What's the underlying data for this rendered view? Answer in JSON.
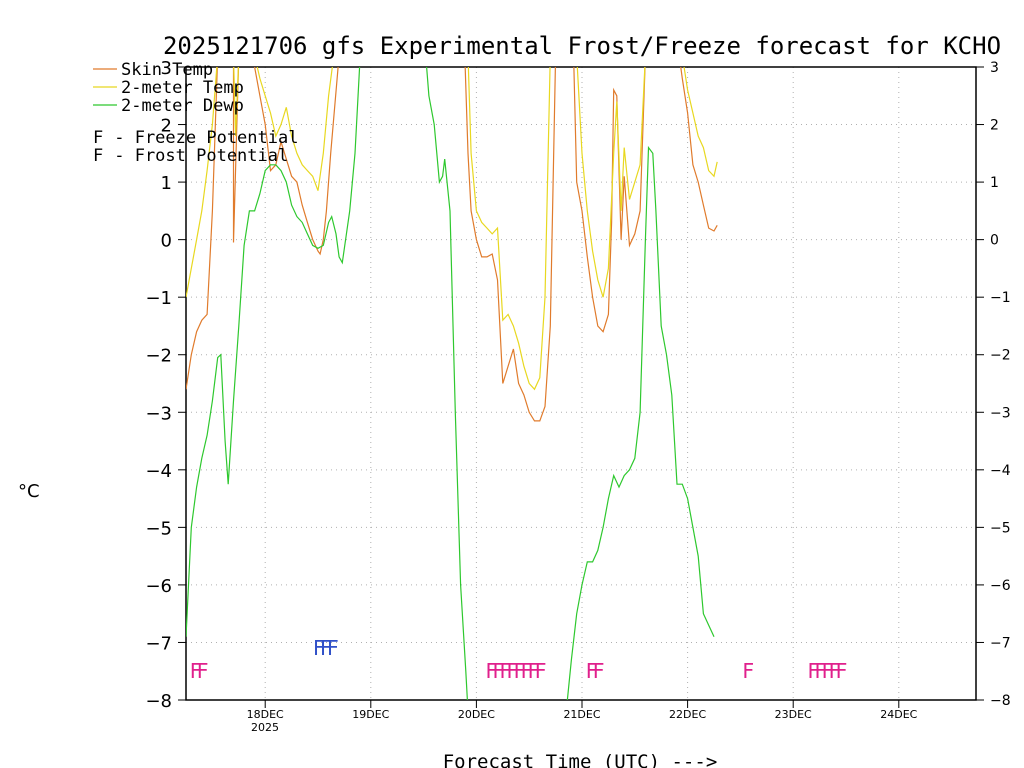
{
  "chart_data": {
    "type": "line",
    "title": "2025121706 gfs Experimental Frost/Freeze forecast for KCHO",
    "ylabel": "°C",
    "xlabel": "Forecast Time (UTC) --->",
    "ylim": [
      -8,
      3
    ],
    "xlim": [
      17.25,
      24.75
    ],
    "y_ticks": [
      -8,
      -7,
      -6,
      -5,
      -4,
      -3,
      -2,
      -1,
      0,
      1,
      2,
      3
    ],
    "y_tick_labels": [
      "−8",
      "−7",
      "−6",
      "−5",
      "−4",
      "−3",
      "−2",
      "−1",
      "0",
      "1",
      "2",
      "3"
    ],
    "x_ticks": [
      18,
      19,
      20,
      21,
      22,
      23,
      24
    ],
    "x_tick_labels": [
      "18DEC",
      "19DEC",
      "20DEC",
      "21DEC",
      "22DEC",
      "23DEC",
      "24DEC"
    ],
    "x_sublabel": "2025",
    "x_units": "day of December 2025 (UTC)",
    "grid": true,
    "colors": {
      "skin": "#e07b2c",
      "temp": "#e8d820",
      "dewp": "#2ec82e",
      "freeze": "#e0208c",
      "frost": "#3050c8"
    },
    "legend": {
      "placement": "top-left",
      "entries": [
        {
          "label": "Skin Temp",
          "color": "#e07b2c"
        },
        {
          "label": "2-meter Temp",
          "color": "#e8d820"
        },
        {
          "label": "2-meter Dewp",
          "color": "#2ec82e"
        }
      ],
      "notes": [
        {
          "symbol": "F",
          "label": " - Freeze Potential",
          "color": "#e0208c"
        },
        {
          "symbol": "F",
          "label": " - Frost Potential",
          "color": "#3050c8"
        }
      ]
    },
    "series": [
      {
        "name": "Skin Temp",
        "color": "#e07b2c",
        "segments": [
          [
            [
              17.25,
              -2.6
            ],
            [
              17.3,
              -2.0
            ],
            [
              17.35,
              -1.6
            ],
            [
              17.4,
              -1.4
            ],
            [
              17.45,
              -1.3
            ],
            [
              17.5,
              0.5
            ],
            [
              17.55,
              3.2
            ]
          ],
          [
            [
              17.7,
              3.2
            ],
            [
              17.7,
              -0.05
            ],
            [
              17.75,
              3.2
            ]
          ],
          [
            [
              17.88,
              3.2
            ],
            [
              17.95,
              2.5
            ],
            [
              18.0,
              2.0
            ],
            [
              18.05,
              1.2
            ],
            [
              18.1,
              1.3
            ],
            [
              18.15,
              1.7
            ],
            [
              18.2,
              1.4
            ],
            [
              18.25,
              1.1
            ],
            [
              18.3,
              1.0
            ],
            [
              18.35,
              0.6
            ],
            [
              18.4,
              0.3
            ],
            [
              18.45,
              0.0
            ],
            [
              18.5,
              -0.2
            ],
            [
              18.52,
              -0.25
            ],
            [
              18.55,
              0.0
            ],
            [
              18.58,
              0.5
            ],
            [
              18.62,
              1.5
            ],
            [
              18.7,
              3.2
            ]
          ],
          [
            [
              19.89,
              3.2
            ],
            [
              19.92,
              1.5
            ],
            [
              19.95,
              0.5
            ],
            [
              20.0,
              0.0
            ],
            [
              20.05,
              -0.3
            ],
            [
              20.1,
              -0.3
            ],
            [
              20.15,
              -0.25
            ],
            [
              20.2,
              -0.7
            ],
            [
              20.25,
              -2.5
            ],
            [
              20.3,
              -2.2
            ],
            [
              20.35,
              -1.9
            ],
            [
              20.4,
              -2.5
            ],
            [
              20.45,
              -2.7
            ],
            [
              20.5,
              -3.0
            ],
            [
              20.55,
              -3.15
            ],
            [
              20.6,
              -3.15
            ],
            [
              20.65,
              -2.9
            ],
            [
              20.7,
              -1.5
            ],
            [
              20.75,
              3.2
            ]
          ],
          [
            [
              20.92,
              3.2
            ],
            [
              20.95,
              1.0
            ],
            [
              21.0,
              0.5
            ],
            [
              21.05,
              -0.3
            ],
            [
              21.1,
              -1.0
            ],
            [
              21.15,
              -1.5
            ],
            [
              21.2,
              -1.6
            ],
            [
              21.25,
              -1.3
            ],
            [
              21.28,
              0.3
            ],
            [
              21.3,
              2.6
            ],
            [
              21.33,
              2.5
            ],
            [
              21.35,
              1.2
            ],
            [
              21.37,
              0.0
            ],
            [
              21.4,
              1.1
            ],
            [
              21.45,
              -0.1
            ],
            [
              21.5,
              0.1
            ],
            [
              21.55,
              0.5
            ],
            [
              21.6,
              3.2
            ]
          ],
          [
            [
              21.92,
              3.2
            ],
            [
              21.95,
              2.8
            ],
            [
              22.0,
              2.2
            ],
            [
              22.05,
              1.3
            ],
            [
              22.1,
              1.0
            ],
            [
              22.15,
              0.6
            ],
            [
              22.2,
              0.2
            ],
            [
              22.25,
              0.15
            ],
            [
              22.28,
              0.25
            ]
          ]
        ]
      },
      {
        "name": "2-meter Temp",
        "color": "#e8d820",
        "segments": [
          [
            [
              17.25,
              -1.0
            ],
            [
              17.3,
              -0.5
            ],
            [
              17.35,
              0.0
            ],
            [
              17.4,
              0.5
            ],
            [
              17.45,
              1.2
            ],
            [
              17.5,
              2.0
            ],
            [
              17.55,
              3.2
            ]
          ],
          [
            [
              17.7,
              3.2
            ],
            [
              17.72,
              1.8
            ],
            [
              17.75,
              3.2
            ]
          ],
          [
            [
              17.9,
              3.2
            ],
            [
              17.95,
              2.8
            ],
            [
              18.0,
              2.5
            ],
            [
              18.05,
              2.2
            ],
            [
              18.1,
              1.8
            ],
            [
              18.15,
              2.0
            ],
            [
              18.2,
              2.3
            ],
            [
              18.25,
              1.8
            ],
            [
              18.3,
              1.5
            ],
            [
              18.35,
              1.3
            ],
            [
              18.4,
              1.2
            ],
            [
              18.45,
              1.1
            ],
            [
              18.5,
              0.85
            ],
            [
              18.55,
              1.5
            ],
            [
              18.6,
              2.5
            ],
            [
              18.65,
              3.2
            ]
          ],
          [
            [
              19.92,
              3.2
            ],
            [
              19.95,
              1.5
            ],
            [
              20.0,
              0.5
            ],
            [
              20.05,
              0.3
            ],
            [
              20.1,
              0.2
            ],
            [
              20.15,
              0.1
            ],
            [
              20.2,
              0.2
            ],
            [
              20.25,
              -1.4
            ],
            [
              20.3,
              -1.3
            ],
            [
              20.35,
              -1.5
            ],
            [
              20.4,
              -1.8
            ],
            [
              20.45,
              -2.2
            ],
            [
              20.5,
              -2.5
            ],
            [
              20.55,
              -2.6
            ],
            [
              20.6,
              -2.4
            ],
            [
              20.65,
              -1.0
            ],
            [
              20.7,
              3.2
            ]
          ],
          [
            [
              20.95,
              3.2
            ],
            [
              21.0,
              1.5
            ],
            [
              21.05,
              0.5
            ],
            [
              21.1,
              -0.2
            ],
            [
              21.15,
              -0.7
            ],
            [
              21.2,
              -1.0
            ],
            [
              21.25,
              -0.5
            ],
            [
              21.3,
              1.5
            ],
            [
              21.33,
              2.4
            ],
            [
              21.37,
              0.5
            ],
            [
              21.4,
              1.6
            ],
            [
              21.45,
              0.7
            ],
            [
              21.5,
              1.0
            ],
            [
              21.55,
              1.3
            ],
            [
              21.6,
              3.2
            ]
          ],
          [
            [
              21.95,
              3.2
            ],
            [
              22.0,
              2.6
            ],
            [
              22.05,
              2.2
            ],
            [
              22.1,
              1.8
            ],
            [
              22.15,
              1.6
            ],
            [
              22.2,
              1.2
            ],
            [
              22.25,
              1.1
            ],
            [
              22.28,
              1.35
            ]
          ]
        ]
      },
      {
        "name": "2-meter Dewp",
        "color": "#2ec82e",
        "segments": [
          [
            [
              17.25,
              -6.9
            ],
            [
              17.3,
              -5.0
            ],
            [
              17.35,
              -4.3
            ],
            [
              17.4,
              -3.8
            ],
            [
              17.45,
              -3.4
            ],
            [
              17.5,
              -2.8
            ],
            [
              17.55,
              -2.05
            ],
            [
              17.58,
              -2.0
            ],
            [
              17.62,
              -3.5
            ],
            [
              17.65,
              -4.25
            ],
            [
              17.7,
              -2.8
            ],
            [
              17.75,
              -1.5
            ],
            [
              17.8,
              -0.1
            ],
            [
              17.85,
              0.5
            ],
            [
              17.9,
              0.5
            ],
            [
              17.95,
              0.8
            ],
            [
              18.0,
              1.2
            ],
            [
              18.05,
              1.3
            ],
            [
              18.1,
              1.3
            ],
            [
              18.15,
              1.2
            ],
            [
              18.2,
              1.0
            ],
            [
              18.25,
              0.6
            ],
            [
              18.3,
              0.4
            ],
            [
              18.35,
              0.3
            ],
            [
              18.4,
              0.1
            ],
            [
              18.45,
              -0.1
            ],
            [
              18.5,
              -0.15
            ],
            [
              18.55,
              -0.1
            ],
            [
              18.6,
              0.3
            ],
            [
              18.63,
              0.4
            ],
            [
              18.67,
              0.1
            ],
            [
              18.7,
              -0.3
            ],
            [
              18.73,
              -0.4
            ],
            [
              18.8,
              0.5
            ],
            [
              18.85,
              1.5
            ],
            [
              18.9,
              3.2
            ]
          ],
          [
            [
              19.52,
              3.2
            ],
            [
              19.55,
              2.5
            ],
            [
              19.6,
              2.0
            ],
            [
              19.65,
              1.0
            ],
            [
              19.68,
              1.1
            ],
            [
              19.7,
              1.4
            ],
            [
              19.75,
              0.5
            ],
            [
              19.8,
              -3.0
            ],
            [
              19.85,
              -6.0
            ],
            [
              19.9,
              -7.5
            ],
            [
              19.92,
              -8.2
            ]
          ],
          [
            [
              20.85,
              -8.2
            ],
            [
              20.9,
              -7.3
            ],
            [
              20.95,
              -6.5
            ],
            [
              21.0,
              -6.0
            ],
            [
              21.05,
              -5.6
            ],
            [
              21.1,
              -5.6
            ],
            [
              21.15,
              -5.4
            ],
            [
              21.2,
              -5.0
            ],
            [
              21.25,
              -4.5
            ],
            [
              21.3,
              -4.1
            ],
            [
              21.35,
              -4.3
            ],
            [
              21.4,
              -4.1
            ],
            [
              21.45,
              -4.0
            ],
            [
              21.5,
              -3.8
            ],
            [
              21.55,
              -3.0
            ],
            [
              21.6,
              0.0
            ],
            [
              21.63,
              1.6
            ],
            [
              21.67,
              1.5
            ],
            [
              21.7,
              0.5
            ],
            [
              21.75,
              -1.5
            ],
            [
              21.8,
              -2.0
            ],
            [
              21.85,
              -2.7
            ],
            [
              21.9,
              -4.25
            ],
            [
              21.95,
              -4.25
            ],
            [
              22.0,
              -4.5
            ],
            [
              22.05,
              -5.0
            ],
            [
              22.1,
              -5.5
            ],
            [
              22.15,
              -6.5
            ],
            [
              22.2,
              -6.7
            ],
            [
              22.25,
              -6.9
            ]
          ]
        ]
      }
    ],
    "freeze_markers": [
      {
        "x": 17.35,
        "text": "FF"
      },
      {
        "x": 20.35,
        "text": "FFFFFFFF"
      },
      {
        "x": 21.1,
        "text": "FF"
      },
      {
        "x": 22.55,
        "text": "F"
      },
      {
        "x": 23.3,
        "text": "FFFFF"
      }
    ],
    "frost_markers": [
      {
        "x": 18.55,
        "text": "FFF"
      }
    ]
  }
}
